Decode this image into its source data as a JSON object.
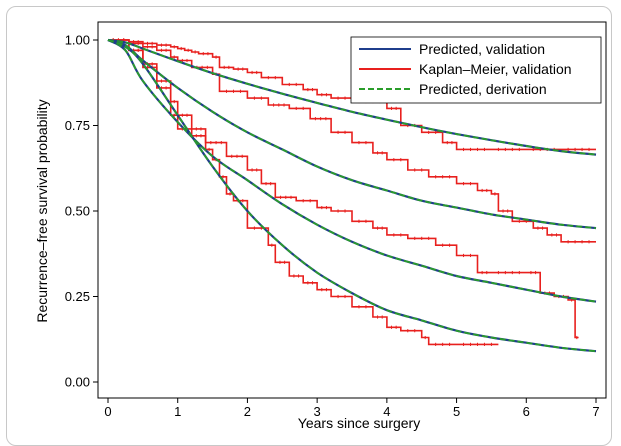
{
  "chart_data": {
    "type": "line",
    "title": "",
    "xlabel": "Years since surgery",
    "ylabel": "Recurrence–free survival probability",
    "xlim": [
      0,
      7
    ],
    "ylim": [
      0,
      1
    ],
    "x_ticks": [
      0,
      1,
      2,
      3,
      4,
      5,
      6,
      7
    ],
    "x_tick_labels": [
      "0",
      "1",
      "2",
      "3",
      "4",
      "5",
      "6",
      "7"
    ],
    "y_ticks": [
      0,
      0.25,
      0.5,
      0.75,
      1
    ],
    "y_tick_labels": [
      "0.00",
      "0.25",
      "0.50",
      "0.75",
      "1.00"
    ],
    "grid": false,
    "legend_position": "top-right",
    "legend": [
      {
        "label": "Predicted, validation",
        "color": "#1f3e8c",
        "style": "solid"
      },
      {
        "label": "Kaplan–Meier, validation",
        "color": "#e8201e",
        "style": "solid"
      },
      {
        "label": "Predicted, derivation",
        "color": "#2a9d2a",
        "style": "dashed"
      }
    ],
    "colors": {
      "predicted_validation": "#1f3e8c",
      "kaplan_meier": "#e8201e",
      "predicted_derivation": "#2a9d2a"
    },
    "predicted_curves": [
      {
        "group": 1,
        "x": [
          0,
          0.25,
          0.5,
          1,
          1.5,
          2,
          2.5,
          3,
          3.5,
          4,
          4.5,
          5,
          5.5,
          6,
          6.5,
          7
        ],
        "y": [
          1,
          0.993,
          0.975,
          0.938,
          0.903,
          0.872,
          0.843,
          0.816,
          0.79,
          0.767,
          0.745,
          0.725,
          0.707,
          0.69,
          0.675,
          0.665
        ]
      },
      {
        "group": 2,
        "x": [
          0,
          0.25,
          0.5,
          1,
          1.5,
          2,
          2.5,
          3,
          3.5,
          4,
          4.5,
          5,
          5.5,
          6,
          6.5,
          7
        ],
        "y": [
          1,
          0.985,
          0.94,
          0.86,
          0.79,
          0.73,
          0.68,
          0.63,
          0.59,
          0.56,
          0.53,
          0.51,
          0.49,
          0.475,
          0.46,
          0.45
        ]
      },
      {
        "group": 3,
        "x": [
          0,
          0.25,
          0.5,
          1,
          1.5,
          2,
          2.5,
          3,
          3.5,
          4,
          4.5,
          5,
          5.5,
          6,
          6.5,
          7
        ],
        "y": [
          1,
          0.97,
          0.88,
          0.76,
          0.66,
          0.59,
          0.52,
          0.46,
          0.41,
          0.37,
          0.34,
          0.31,
          0.29,
          0.27,
          0.25,
          0.235
        ]
      },
      {
        "group": 4,
        "x": [
          0,
          0.25,
          0.5,
          1,
          1.5,
          2,
          2.5,
          3,
          3.5,
          4,
          4.5,
          5,
          5.5,
          6,
          6.5,
          7
        ],
        "y": [
          1,
          0.98,
          0.93,
          0.78,
          0.63,
          0.5,
          0.4,
          0.32,
          0.26,
          0.21,
          0.18,
          0.15,
          0.13,
          0.115,
          0.1,
          0.09
        ]
      }
    ],
    "kaplan_meier_curves": [
      {
        "group": 1,
        "x": [
          0,
          0.3,
          0.5,
          0.7,
          0.9,
          1.0,
          1.1,
          1.2,
          1.3,
          1.5,
          1.6,
          1.8,
          2.0,
          2.2,
          2.5,
          2.8,
          3.0,
          3.2,
          3.5,
          4.0,
          4.2,
          4.5,
          4.8,
          5.0,
          5.5,
          6.0,
          6.5,
          7.0
        ],
        "y": [
          1,
          0.995,
          0.99,
          0.985,
          0.98,
          0.975,
          0.97,
          0.965,
          0.96,
          0.95,
          0.92,
          0.915,
          0.905,
          0.89,
          0.87,
          0.855,
          0.84,
          0.83,
          0.82,
          0.8,
          0.75,
          0.73,
          0.7,
          0.68,
          0.68,
          0.68,
          0.68,
          0.68
        ]
      },
      {
        "group": 2,
        "x": [
          0,
          0.3,
          0.5,
          0.7,
          0.9,
          1.0,
          1.2,
          1.5,
          1.6,
          2.0,
          2.3,
          2.6,
          2.9,
          3.2,
          3.5,
          3.8,
          4.0,
          4.3,
          4.6,
          5.0,
          5.3,
          5.5,
          5.6,
          5.8,
          6.1,
          6.3,
          6.5,
          7.0
        ],
        "y": [
          1,
          0.99,
          0.98,
          0.97,
          0.95,
          0.94,
          0.92,
          0.9,
          0.85,
          0.83,
          0.81,
          0.8,
          0.77,
          0.73,
          0.7,
          0.67,
          0.65,
          0.62,
          0.6,
          0.58,
          0.56,
          0.55,
          0.5,
          0.47,
          0.45,
          0.43,
          0.41,
          0.41
        ]
      },
      {
        "group": 3,
        "x": [
          0,
          0.3,
          0.5,
          0.7,
          0.9,
          1.0,
          1.2,
          1.4,
          1.7,
          2.0,
          2.2,
          2.4,
          2.7,
          3.0,
          3.2,
          3.5,
          3.8,
          4.0,
          4.3,
          4.7,
          5.0,
          5.3,
          5.5,
          6.0,
          6.2,
          6.4,
          6.6,
          6.7,
          6.75
        ],
        "y": [
          1,
          0.97,
          0.93,
          0.88,
          0.82,
          0.78,
          0.74,
          0.7,
          0.66,
          0.62,
          0.58,
          0.54,
          0.53,
          0.51,
          0.5,
          0.47,
          0.45,
          0.43,
          0.42,
          0.4,
          0.37,
          0.32,
          0.32,
          0.32,
          0.26,
          0.25,
          0.24,
          0.13,
          0.13
        ]
      },
      {
        "group": 4,
        "x": [
          0,
          0.3,
          0.5,
          0.7,
          0.9,
          1.0,
          1.2,
          1.4,
          1.5,
          1.6,
          1.7,
          1.8,
          2.0,
          2.3,
          2.4,
          2.6,
          2.8,
          3.0,
          3.2,
          3.5,
          3.8,
          4.0,
          4.2,
          4.5,
          4.6,
          5.0,
          5.6
        ],
        "y": [
          1,
          0.97,
          0.92,
          0.86,
          0.78,
          0.74,
          0.72,
          0.68,
          0.65,
          0.6,
          0.55,
          0.53,
          0.45,
          0.4,
          0.35,
          0.31,
          0.29,
          0.27,
          0.25,
          0.22,
          0.19,
          0.16,
          0.15,
          0.13,
          0.11,
          0.11,
          0.11
        ]
      }
    ]
  }
}
